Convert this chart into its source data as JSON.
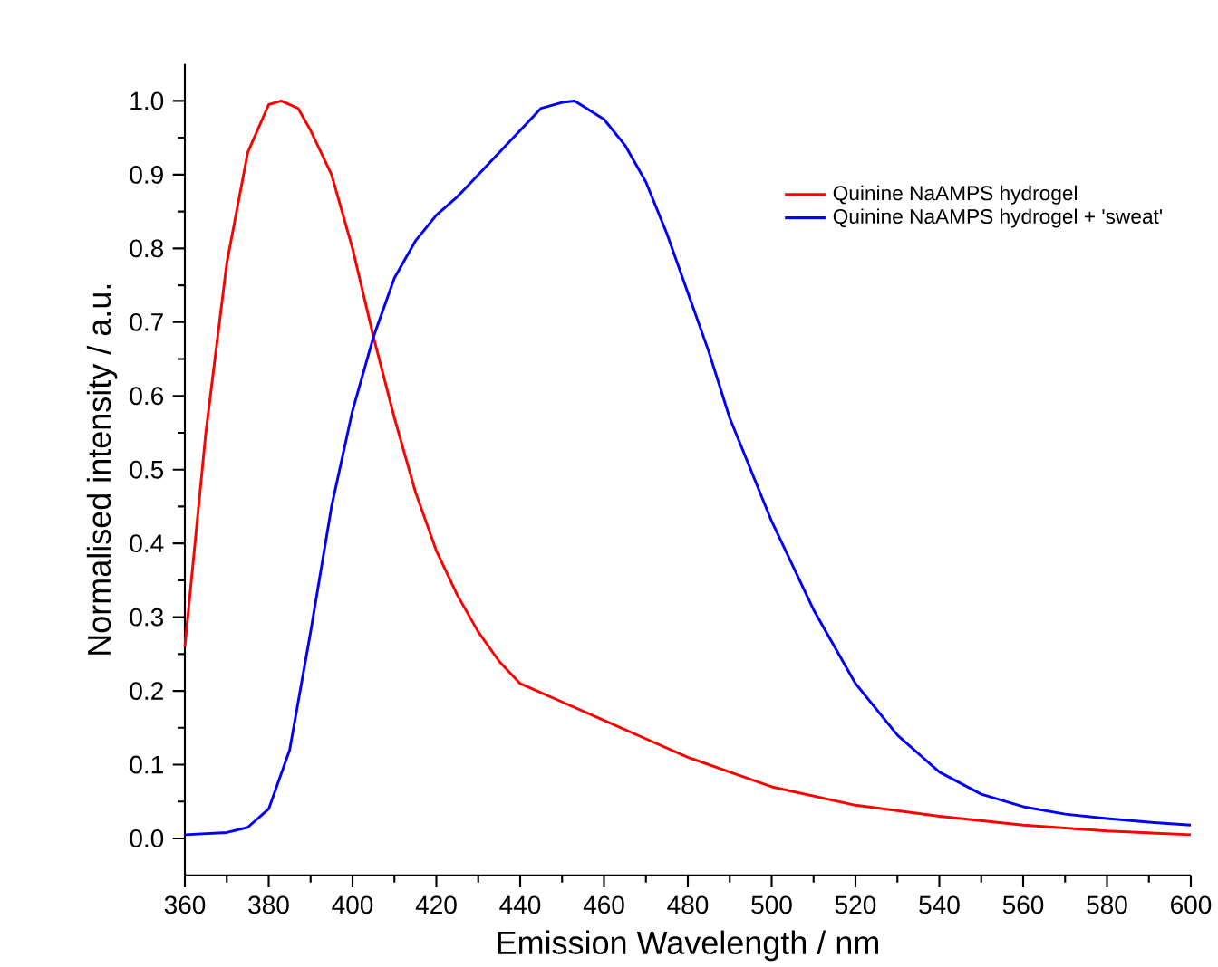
{
  "chart_data": {
    "type": "line",
    "xlabel": "Emission Wavelength / nm",
    "ylabel": "Normalised intensity / a.u.",
    "xlim": [
      360,
      600
    ],
    "ylim": [
      -0.05,
      1.05
    ],
    "xticks": [
      360,
      380,
      400,
      420,
      440,
      460,
      480,
      500,
      520,
      540,
      560,
      580,
      600
    ],
    "yticks": [
      {
        "value": 0,
        "label": "0.0"
      },
      0.1,
      0.2,
      0.3,
      0.4,
      0.5,
      0.6,
      0.7,
      0.8,
      0.9,
      {
        "value": 1,
        "label": "1.0"
      }
    ],
    "legend": "top right",
    "grid": false,
    "line_style": "solid",
    "series": [
      {
        "name": "Quinine NaAMPS hydrogel",
        "color": "#ff0000",
        "x": [
          360,
          365,
          370,
          375,
          380,
          383,
          387,
          390,
          395,
          400,
          405,
          410,
          415,
          420,
          425,
          430,
          435,
          440,
          450,
          460,
          470,
          480,
          490,
          500,
          520,
          540,
          560,
          580,
          600
        ],
        "values": [
          0.26,
          0.55,
          0.78,
          0.93,
          0.995,
          1.0,
          0.99,
          0.96,
          0.9,
          0.8,
          0.68,
          0.57,
          0.47,
          0.39,
          0.33,
          0.28,
          0.24,
          0.21,
          0.185,
          0.16,
          0.135,
          0.11,
          0.09,
          0.07,
          0.045,
          0.03,
          0.018,
          0.01,
          0.005
        ]
      },
      {
        "name": "Quinine NaAMPS hydrogel + 'sweat'",
        "color": "#0000ff",
        "x": [
          360,
          370,
          375,
          380,
          385,
          390,
          395,
          400,
          405,
          410,
          415,
          420,
          425,
          430,
          435,
          440,
          445,
          450,
          453,
          460,
          465,
          470,
          475,
          480,
          485,
          490,
          500,
          510,
          520,
          530,
          540,
          550,
          560,
          570,
          580,
          590,
          600
        ],
        "values": [
          0.005,
          0.008,
          0.015,
          0.04,
          0.12,
          0.28,
          0.45,
          0.58,
          0.68,
          0.76,
          0.81,
          0.845,
          0.87,
          0.9,
          0.93,
          0.96,
          0.99,
          0.998,
          1.0,
          0.975,
          0.94,
          0.89,
          0.82,
          0.74,
          0.66,
          0.57,
          0.43,
          0.31,
          0.21,
          0.14,
          0.09,
          0.06,
          0.043,
          0.033,
          0.027,
          0.022,
          0.018
        ]
      }
    ]
  }
}
